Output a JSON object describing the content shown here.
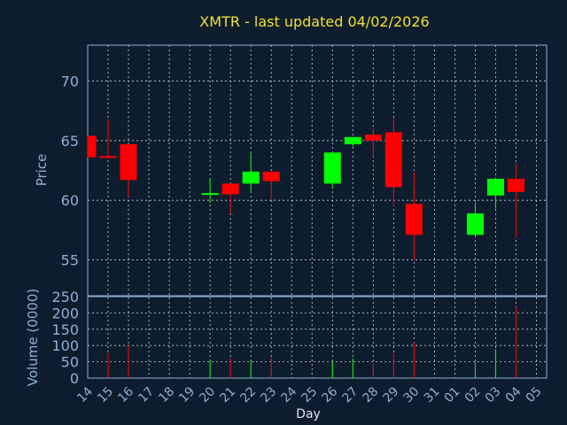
{
  "chart_data": [
    {
      "type": "candlestick",
      "title": "XMTR - last updated 04/02/2026",
      "ylabel": "Price",
      "ylim": [
        52,
        73
      ],
      "yticks": [
        55,
        60,
        65,
        70
      ],
      "grid": true,
      "up_color": "#00ff00",
      "down_color": "#ff0000",
      "categories": [
        "14",
        "15",
        "16",
        "17",
        "18",
        "19",
        "20",
        "21",
        "22",
        "23",
        "24",
        "25",
        "26",
        "27",
        "28",
        "29",
        "30",
        "31",
        "01",
        "02",
        "03",
        "04",
        "05"
      ],
      "candles": [
        {
          "x": "14",
          "open": 65.4,
          "high": 65.4,
          "low": 63.6,
          "close": 63.6
        },
        {
          "x": "15",
          "open": 63.7,
          "high": 66.8,
          "low": 63.5,
          "close": 63.6
        },
        {
          "x": "16",
          "open": 64.7,
          "high": 64.7,
          "low": 60.3,
          "close": 61.7
        },
        {
          "x": "20",
          "open": 60.5,
          "high": 61.8,
          "low": 59.8,
          "close": 60.6
        },
        {
          "x": "21",
          "open": 61.4,
          "high": 61.4,
          "low": 58.9,
          "close": 60.5
        },
        {
          "x": "22",
          "open": 61.4,
          "high": 64.0,
          "low": 60.8,
          "close": 62.4
        },
        {
          "x": "23",
          "open": 62.4,
          "high": 62.4,
          "low": 60.0,
          "close": 61.6
        },
        {
          "x": "26",
          "open": 61.4,
          "high": 64.0,
          "low": 61.0,
          "close": 64.0
        },
        {
          "x": "27",
          "open": 64.7,
          "high": 65.3,
          "low": 64.5,
          "close": 65.3
        },
        {
          "x": "28",
          "open": 65.5,
          "high": 66.0,
          "low": 63.6,
          "close": 65.0
        },
        {
          "x": "29",
          "open": 65.7,
          "high": 66.9,
          "low": 59.5,
          "close": 61.1
        },
        {
          "x": "30",
          "open": 59.7,
          "high": 62.3,
          "low": 55.0,
          "close": 57.1
        },
        {
          "x": "02",
          "open": 57.1,
          "high": 59.8,
          "low": 57.0,
          "close": 58.9
        },
        {
          "x": "03",
          "open": 60.4,
          "high": 61.9,
          "low": 59.3,
          "close": 61.8
        },
        {
          "x": "04",
          "open": 61.8,
          "high": 63.1,
          "low": 56.9,
          "close": 60.7
        }
      ]
    },
    {
      "type": "bar",
      "ylabel": "Volume (0000)",
      "ylim": [
        0,
        250
      ],
      "yticks": [
        0,
        50,
        100,
        150,
        200,
        250
      ],
      "xlabel": "Day",
      "grid": true,
      "bars": [
        {
          "x": "15",
          "value": 75,
          "color": "#ff0000"
        },
        {
          "x": "16",
          "value": 100,
          "color": "#ff0000"
        },
        {
          "x": "20",
          "value": 55,
          "color": "#00ff00"
        },
        {
          "x": "21",
          "value": 62,
          "color": "#ff0000"
        },
        {
          "x": "22",
          "value": 52,
          "color": "#00ff00"
        },
        {
          "x": "23",
          "value": 65,
          "color": "#ff0000"
        },
        {
          "x": "26",
          "value": 52,
          "color": "#00ff00"
        },
        {
          "x": "27",
          "value": 60,
          "color": "#00ff00"
        },
        {
          "x": "28",
          "value": 45,
          "color": "#ff0000"
        },
        {
          "x": "29",
          "value": 75,
          "color": "#ff0000"
        },
        {
          "x": "30",
          "value": 108,
          "color": "#ff0000"
        },
        {
          "x": "02",
          "value": 48,
          "color": "#00ff00"
        },
        {
          "x": "03",
          "value": 88,
          "color": "#00ff00"
        },
        {
          "x": "04",
          "value": 218,
          "color": "#ff0000"
        }
      ]
    }
  ]
}
